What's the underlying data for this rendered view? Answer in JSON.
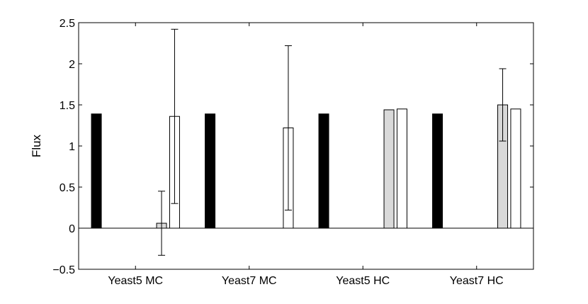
{
  "chart_data": {
    "type": "bar",
    "ylabel": "Flux",
    "xlabel": "",
    "title": "",
    "ylim": [
      -0.5,
      2.5
    ],
    "yticks": [
      -0.5,
      0,
      0.5,
      1,
      1.5,
      2,
      2.5
    ],
    "ytick_labels": [
      "−0.5",
      "0",
      "0.5",
      "1",
      "1.5",
      "2",
      "2.5"
    ],
    "categories": [
      "Yeast5 MC",
      "Yeast7 MC",
      "Yeast5 HC",
      "Yeast7 HC"
    ],
    "grid": false,
    "series": [
      {
        "color": "#000000",
        "values": [
          1.39,
          1.39,
          1.39,
          1.39
        ]
      },
      {
        "color": "#000000",
        "values": [
          0,
          0,
          0,
          0
        ]
      },
      {
        "color": "#000000",
        "values": [
          0,
          0,
          0,
          0
        ]
      },
      {
        "color": "#000000",
        "values": [
          0,
          0,
          0,
          0
        ]
      },
      {
        "color": "#000000",
        "values": [
          0,
          0,
          0,
          0
        ]
      },
      {
        "color": "#d9d9d9",
        "values": [
          0.06,
          0,
          1.44,
          1.5
        ],
        "err_low": [
          -0.33,
          null,
          null,
          1.06
        ],
        "err_high": [
          0.45,
          null,
          null,
          1.94
        ]
      },
      {
        "color": "#ffffff",
        "values": [
          1.36,
          1.22,
          1.45,
          1.45
        ],
        "err_low": [
          0.3,
          0.22,
          null,
          null
        ],
        "err_high": [
          2.42,
          2.22,
          null,
          null
        ]
      }
    ]
  }
}
